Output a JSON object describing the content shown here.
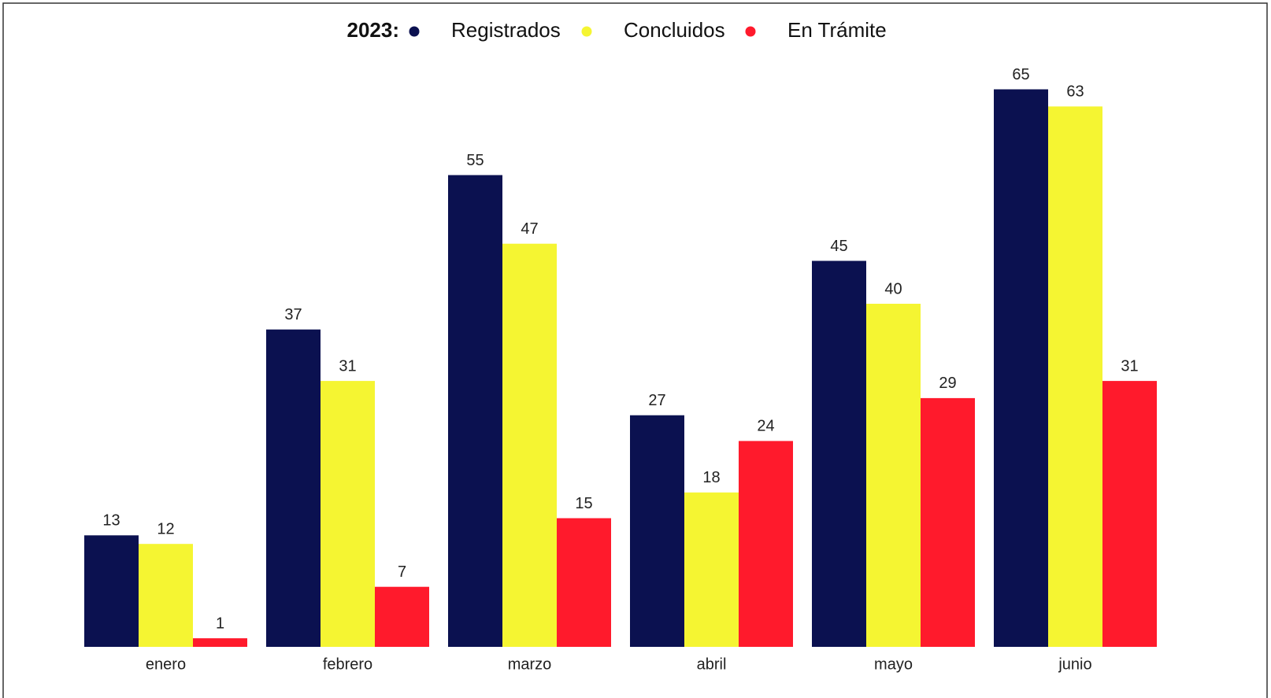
{
  "chart_data": {
    "type": "bar",
    "legend_title": "2023:",
    "categories": [
      "enero",
      "febrero",
      "marzo",
      "abril",
      "mayo",
      "junio"
    ],
    "series": [
      {
        "name": "Registrados",
        "color": "#0b1150",
        "values": [
          13,
          37,
          55,
          27,
          45,
          65
        ]
      },
      {
        "name": "Concluidos",
        "color": "#f5f532",
        "values": [
          12,
          31,
          47,
          18,
          40,
          63
        ]
      },
      {
        "name": "En Trámite",
        "color": "#ff1a2c",
        "values": [
          1,
          7,
          15,
          24,
          29,
          31
        ]
      }
    ],
    "ylim": [
      0,
      70
    ],
    "legend": "top"
  }
}
